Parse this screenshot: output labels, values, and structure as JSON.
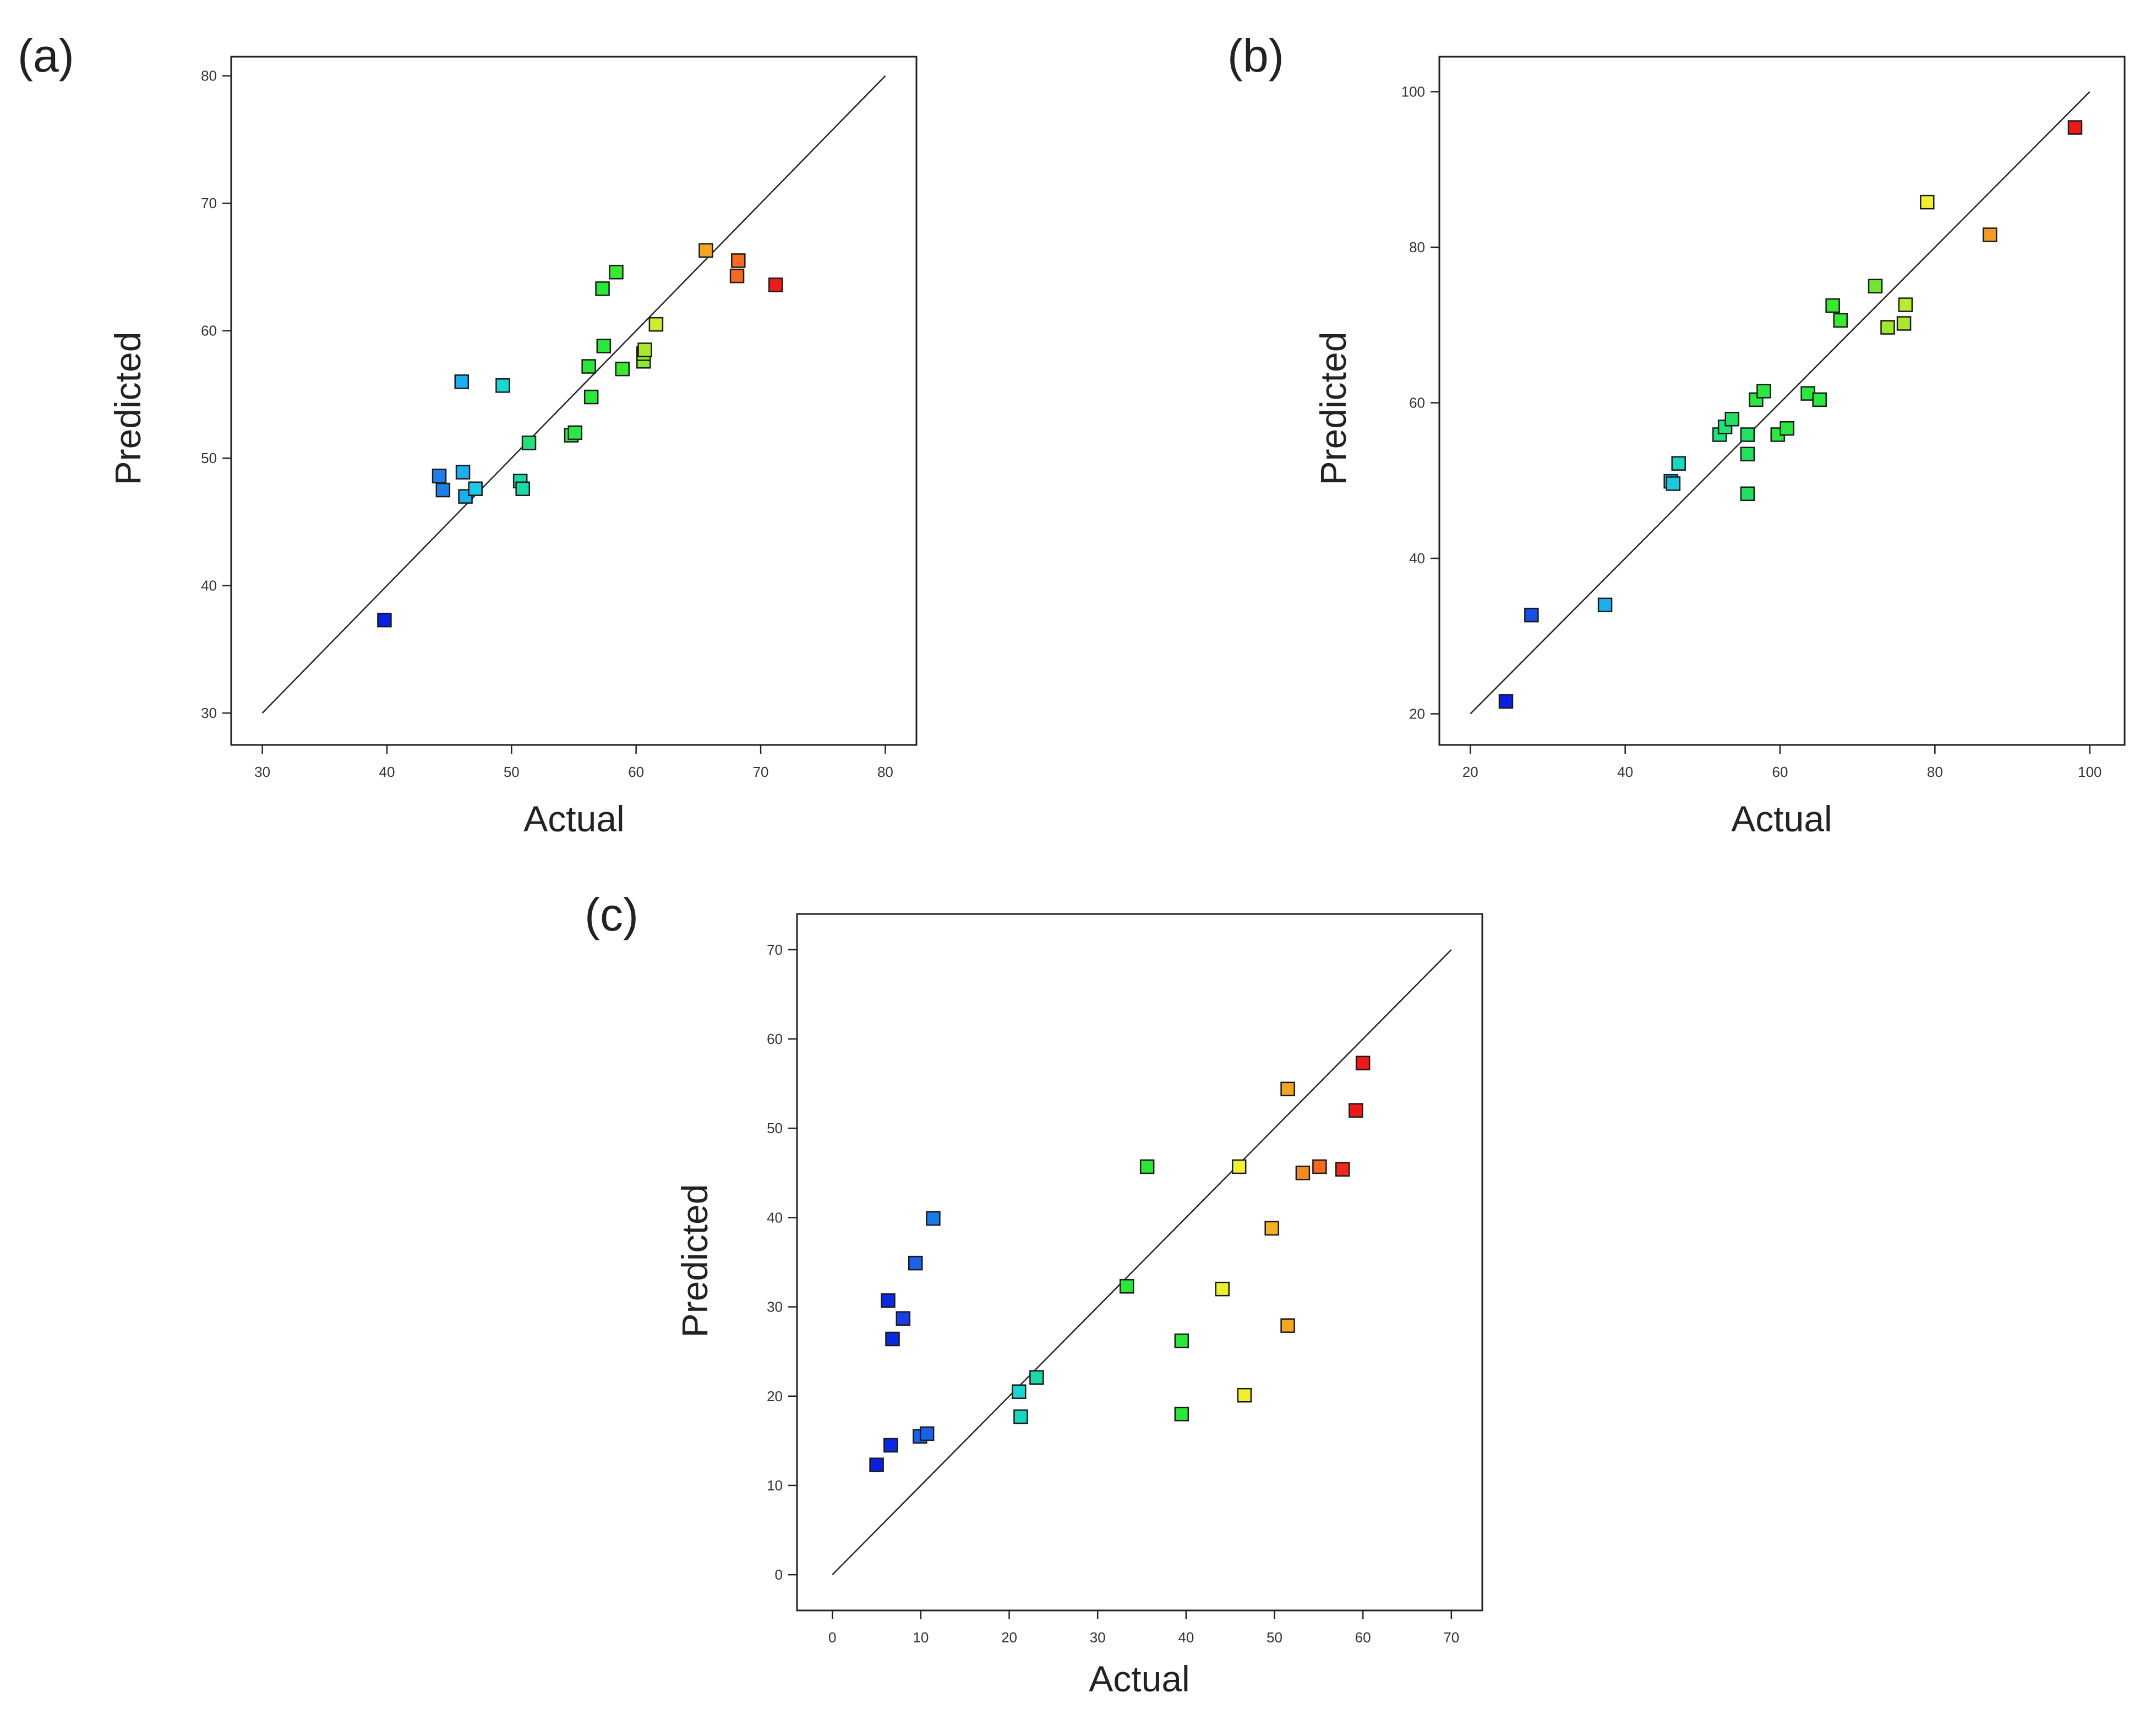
{
  "chart_data": [
    {
      "type": "scatter",
      "panel_label": "(a)",
      "xlabel": "Actual",
      "ylabel": "Predicted",
      "xlim": [
        27.5,
        82.5
      ],
      "ylim": [
        27.5,
        81.5
      ],
      "xticks": [
        30,
        40,
        50,
        60,
        70,
        80
      ],
      "yticks": [
        30,
        40,
        50,
        60,
        70,
        80
      ],
      "reference_line": [
        [
          30,
          30
        ],
        [
          80,
          80
        ]
      ],
      "points": [
        {
          "x": 39.8,
          "y": 37.3,
          "color": "#0a1fe0"
        },
        {
          "x": 44.2,
          "y": 48.6,
          "color": "#1f7fe8"
        },
        {
          "x": 44.5,
          "y": 47.5,
          "color": "#1f7fe8"
        },
        {
          "x": 46.0,
          "y": 56.0,
          "color": "#1ab0f0"
        },
        {
          "x": 46.1,
          "y": 48.9,
          "color": "#1ab0f0"
        },
        {
          "x": 46.3,
          "y": 47.0,
          "color": "#1ab0f0"
        },
        {
          "x": 47.1,
          "y": 47.6,
          "color": "#1ac8e8"
        },
        {
          "x": 49.3,
          "y": 55.7,
          "color": "#1ad6d0"
        },
        {
          "x": 50.7,
          "y": 48.2,
          "color": "#1ad8a8"
        },
        {
          "x": 50.9,
          "y": 47.6,
          "color": "#1ad8a8"
        },
        {
          "x": 51.4,
          "y": 51.2,
          "color": "#22e07a"
        },
        {
          "x": 54.8,
          "y": 51.8,
          "color": "#2ae84a"
        },
        {
          "x": 55.1,
          "y": 52.0,
          "color": "#2ae84a"
        },
        {
          "x": 56.2,
          "y": 57.2,
          "color": "#2ae83a"
        },
        {
          "x": 56.4,
          "y": 54.8,
          "color": "#2ae83a"
        },
        {
          "x": 57.3,
          "y": 63.3,
          "color": "#2ae83a"
        },
        {
          "x": 57.4,
          "y": 58.8,
          "color": "#2ae83a"
        },
        {
          "x": 58.4,
          "y": 64.6,
          "color": "#3ae830"
        },
        {
          "x": 58.9,
          "y": 57.0,
          "color": "#3ae830"
        },
        {
          "x": 60.6,
          "y": 57.6,
          "color": "#8ee830"
        },
        {
          "x": 60.6,
          "y": 58.2,
          "color": "#8ee830"
        },
        {
          "x": 60.7,
          "y": 58.5,
          "color": "#a8e830"
        },
        {
          "x": 61.6,
          "y": 60.5,
          "color": "#c8f030"
        },
        {
          "x": 65.6,
          "y": 66.3,
          "color": "#f5a524"
        },
        {
          "x": 68.2,
          "y": 65.5,
          "color": "#f56a1e"
        },
        {
          "x": 68.1,
          "y": 64.3,
          "color": "#f56a1e"
        },
        {
          "x": 71.2,
          "y": 63.6,
          "color": "#ee1a1a"
        }
      ]
    },
    {
      "type": "scatter",
      "panel_label": "(b)",
      "xlabel": "Actual",
      "ylabel": "Predicted",
      "xlim": [
        16,
        104.5
      ],
      "ylim": [
        16,
        104.5
      ],
      "xticks": [
        20,
        40,
        60,
        80,
        100
      ],
      "yticks": [
        20,
        40,
        60,
        80,
        100
      ],
      "reference_line": [
        [
          20,
          20
        ],
        [
          100,
          100
        ]
      ],
      "points": [
        {
          "x": 24.6,
          "y": 21.6,
          "color": "#0a1fe0"
        },
        {
          "x": 27.9,
          "y": 32.7,
          "color": "#1a4ee8"
        },
        {
          "x": 37.4,
          "y": 34.0,
          "color": "#1ab0f0"
        },
        {
          "x": 45.9,
          "y": 49.9,
          "color": "#1ab8e8"
        },
        {
          "x": 46.2,
          "y": 49.6,
          "color": "#1ac8e0"
        },
        {
          "x": 46.9,
          "y": 52.2,
          "color": "#1ad8c0"
        },
        {
          "x": 52.2,
          "y": 55.9,
          "color": "#22e07a"
        },
        {
          "x": 52.9,
          "y": 56.9,
          "color": "#22e07a"
        },
        {
          "x": 53.8,
          "y": 57.9,
          "color": "#22e060"
        },
        {
          "x": 55.8,
          "y": 55.9,
          "color": "#22e060"
        },
        {
          "x": 55.8,
          "y": 53.4,
          "color": "#22e060"
        },
        {
          "x": 55.8,
          "y": 48.3,
          "color": "#22e060"
        },
        {
          "x": 56.9,
          "y": 60.4,
          "color": "#2ae840"
        },
        {
          "x": 57.9,
          "y": 61.5,
          "color": "#2ae840"
        },
        {
          "x": 59.7,
          "y": 55.9,
          "color": "#2ae840"
        },
        {
          "x": 60.9,
          "y": 56.7,
          "color": "#2ae840"
        },
        {
          "x": 63.6,
          "y": 61.2,
          "color": "#2ae840"
        },
        {
          "x": 65.1,
          "y": 60.4,
          "color": "#2ae840"
        },
        {
          "x": 66.8,
          "y": 72.5,
          "color": "#3ae830"
        },
        {
          "x": 67.8,
          "y": 70.6,
          "color": "#3ae830"
        },
        {
          "x": 72.3,
          "y": 75.0,
          "color": "#6ee830"
        },
        {
          "x": 73.9,
          "y": 69.7,
          "color": "#a0e830"
        },
        {
          "x": 76.0,
          "y": 70.2,
          "color": "#a8e830"
        },
        {
          "x": 76.2,
          "y": 72.6,
          "color": "#b8ec30"
        },
        {
          "x": 79.0,
          "y": 85.8,
          "color": "#f0f030"
        },
        {
          "x": 87.1,
          "y": 81.6,
          "color": "#f59a24"
        },
        {
          "x": 98.1,
          "y": 95.4,
          "color": "#ee1a1a"
        }
      ]
    },
    {
      "type": "scatter",
      "panel_label": "(c)",
      "xlabel": "Actual",
      "ylabel": "Predicted",
      "xlim": [
        -4,
        73.5
      ],
      "ylim": [
        -4,
        74
      ],
      "xticks": [
        0,
        10,
        20,
        30,
        40,
        50,
        60,
        70
      ],
      "yticks": [
        0,
        10,
        20,
        30,
        40,
        50,
        60,
        70
      ],
      "reference_line": [
        [
          0,
          0
        ],
        [
          70,
          70
        ]
      ],
      "points": [
        {
          "x": 5.0,
          "y": 12.3,
          "color": "#0a1fe0"
        },
        {
          "x": 6.6,
          "y": 14.5,
          "color": "#0a2ae0"
        },
        {
          "x": 6.3,
          "y": 30.7,
          "color": "#0a2ae0"
        },
        {
          "x": 6.8,
          "y": 26.4,
          "color": "#0a2ae0"
        },
        {
          "x": 8.0,
          "y": 28.7,
          "color": "#1a3ee8"
        },
        {
          "x": 9.4,
          "y": 34.9,
          "color": "#1a62e8"
        },
        {
          "x": 9.9,
          "y": 15.5,
          "color": "#1a62e8"
        },
        {
          "x": 10.7,
          "y": 15.8,
          "color": "#1a62e8"
        },
        {
          "x": 11.4,
          "y": 39.9,
          "color": "#1a7ae8"
        },
        {
          "x": 21.1,
          "y": 20.5,
          "color": "#1ad6d0"
        },
        {
          "x": 21.3,
          "y": 17.7,
          "color": "#1ad6c0"
        },
        {
          "x": 23.1,
          "y": 22.1,
          "color": "#1ad8a8"
        },
        {
          "x": 33.3,
          "y": 32.3,
          "color": "#2ae83a"
        },
        {
          "x": 35.6,
          "y": 45.7,
          "color": "#2ae83a"
        },
        {
          "x": 39.5,
          "y": 26.2,
          "color": "#2ae83a"
        },
        {
          "x": 39.5,
          "y": 18.0,
          "color": "#2ae83a"
        },
        {
          "x": 44.1,
          "y": 32.0,
          "color": "#e8f030"
        },
        {
          "x": 46.0,
          "y": 45.7,
          "color": "#f0f030"
        },
        {
          "x": 46.6,
          "y": 20.1,
          "color": "#f0f030"
        },
        {
          "x": 49.7,
          "y": 38.8,
          "color": "#f5b024"
        },
        {
          "x": 51.5,
          "y": 54.4,
          "color": "#f5a524"
        },
        {
          "x": 51.5,
          "y": 27.9,
          "color": "#f5a524"
        },
        {
          "x": 53.2,
          "y": 45.0,
          "color": "#f58a24"
        },
        {
          "x": 55.1,
          "y": 45.7,
          "color": "#f56a1e"
        },
        {
          "x": 57.7,
          "y": 45.4,
          "color": "#ee2a1a"
        },
        {
          "x": 59.2,
          "y": 52.0,
          "color": "#ee1a1a"
        },
        {
          "x": 60.0,
          "y": 57.3,
          "color": "#ee1a1a"
        }
      ]
    }
  ]
}
